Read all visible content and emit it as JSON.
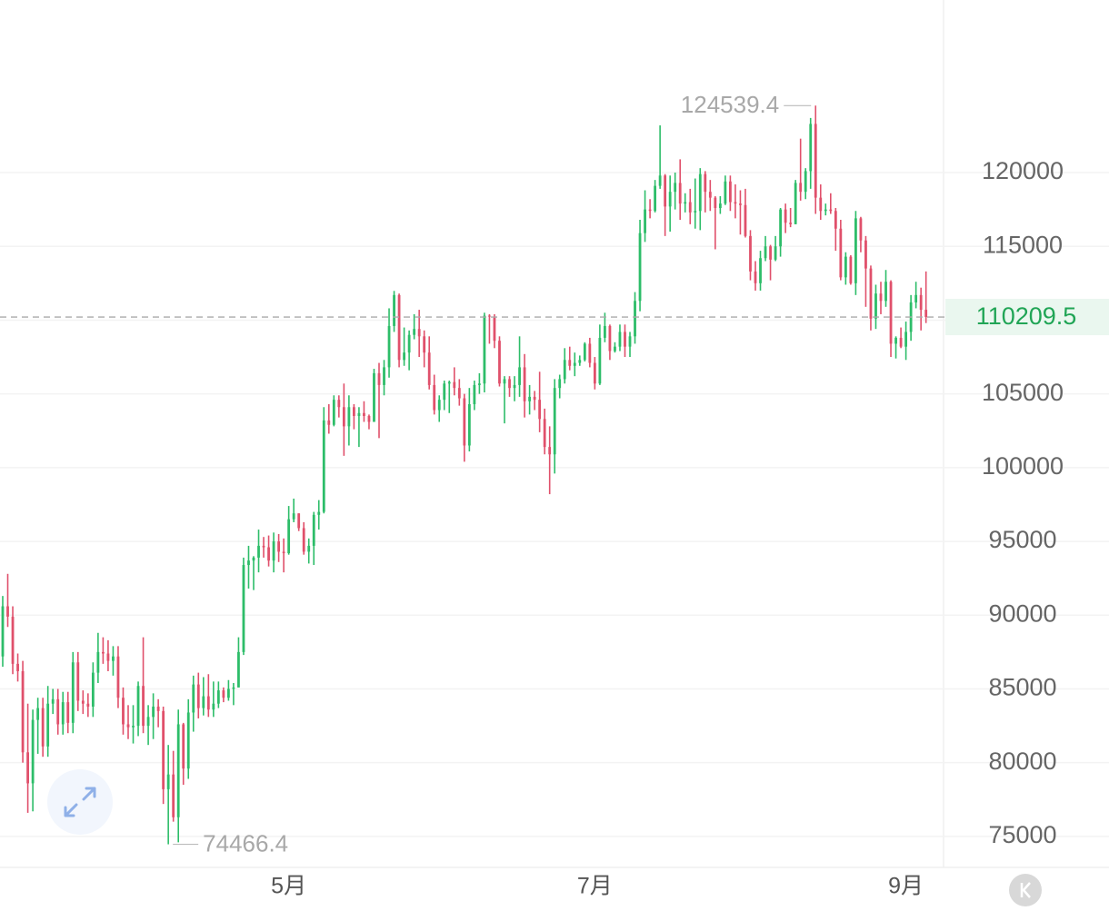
{
  "chart_data": {
    "type": "candlestick",
    "up_color": "#2dbd69",
    "down_color": "#e0506b",
    "grid": true,
    "ylim": [
      72900,
      131700
    ],
    "yticks": [
      75000,
      80000,
      85000,
      90000,
      95000,
      100000,
      105000,
      110000,
      115000,
      120000
    ],
    "categories": [
      null,
      null,
      null,
      null,
      null,
      null,
      null,
      null,
      null,
      null,
      null,
      null,
      null,
      null,
      null,
      null,
      null,
      null,
      null,
      null,
      null,
      null,
      null,
      null,
      null,
      null,
      null,
      null,
      null,
      null,
      null,
      null,
      null,
      null,
      null,
      null,
      null,
      null,
      null,
      null,
      null,
      null,
      null,
      null,
      null,
      null,
      null,
      null,
      null,
      null,
      null,
      null,
      null,
      null,
      null,
      null,
      null,
      "5月",
      null,
      null,
      null,
      null,
      null,
      null,
      null,
      null,
      null,
      null,
      null,
      null,
      null,
      null,
      null,
      null,
      null,
      null,
      null,
      null,
      null,
      null,
      null,
      null,
      null,
      null,
      null,
      null,
      null,
      null,
      null,
      null,
      null,
      null,
      null,
      null,
      null,
      null,
      null,
      null,
      null,
      null,
      null,
      null,
      null,
      null,
      null,
      null,
      null,
      null,
      null,
      null,
      null,
      null,
      null,
      null,
      null,
      null,
      null,
      null,
      "7月",
      null,
      null,
      null,
      null,
      null,
      null,
      null,
      null,
      null,
      null,
      null,
      null,
      null,
      null,
      null,
      null,
      null,
      null,
      null,
      null,
      null,
      null,
      null,
      null,
      null,
      null,
      null,
      null,
      null,
      null,
      null,
      null,
      null,
      null,
      null,
      null,
      null,
      null,
      null,
      null,
      null,
      null,
      null,
      null,
      null,
      null,
      null,
      null,
      null,
      null,
      null,
      null,
      null,
      null,
      null,
      null,
      null,
      null,
      null,
      null,
      null,
      "9月",
      null,
      null,
      null,
      null
    ],
    "ohlc": [
      [
        87200,
        91300,
        86500,
        90600
      ],
      [
        90600,
        92800,
        89200,
        89900
      ],
      [
        89900,
        90600,
        86000,
        86700
      ],
      [
        86700,
        87400,
        85500,
        86200
      ],
      [
        86200,
        86900,
        80000,
        80700
      ],
      [
        80700,
        84000,
        76600,
        78600
      ],
      [
        78600,
        83600,
        76700,
        82900
      ],
      [
        82900,
        84400,
        80600,
        83700
      ],
      [
        83700,
        84400,
        80400,
        81100
      ],
      [
        81100,
        85200,
        80400,
        84000
      ],
      [
        84000,
        85000,
        83300,
        84300
      ],
      [
        84300,
        85000,
        81900,
        82600
      ],
      [
        82600,
        84800,
        81900,
        84100
      ],
      [
        84100,
        84800,
        82000,
        82700
      ],
      [
        82700,
        87500,
        82000,
        86800
      ],
      [
        86800,
        87500,
        83500,
        84200
      ],
      [
        84200,
        84900,
        83300,
        84000
      ],
      [
        84000,
        84700,
        83100,
        83800
      ],
      [
        83800,
        86800,
        83100,
        86100
      ],
      [
        86100,
        88800,
        85400,
        87500
      ],
      [
        87500,
        88500,
        86700,
        87400
      ],
      [
        87400,
        88300,
        86200,
        86900
      ],
      [
        86900,
        87900,
        85900,
        87200
      ],
      [
        87200,
        87900,
        83700,
        84400
      ],
      [
        84400,
        85100,
        81900,
        82600
      ],
      [
        82600,
        83900,
        81600,
        82400
      ],
      [
        82400,
        83900,
        81300,
        82500
      ],
      [
        82500,
        85500,
        81800,
        85200
      ],
      [
        85200,
        88500,
        82000,
        82500
      ],
      [
        82500,
        83900,
        81200,
        83100
      ],
      [
        83100,
        84700,
        81600,
        83800
      ],
      [
        83800,
        84300,
        82400,
        83500
      ],
      [
        83500,
        83800,
        77200,
        78200
      ],
      [
        78200,
        81200,
        74466.4,
        79200
      ],
      [
        79200,
        80800,
        76000,
        76300
      ],
      [
        76300,
        83600,
        74600,
        82600
      ],
      [
        82600,
        82700,
        78500,
        79600
      ],
      [
        79600,
        84300,
        78900,
        83400
      ],
      [
        83400,
        85900,
        82100,
        85300
      ],
      [
        85300,
        86100,
        83000,
        83700
      ],
      [
        83700,
        85800,
        83200,
        84500
      ],
      [
        84500,
        86000,
        83100,
        83600
      ],
      [
        83600,
        85500,
        83100,
        84000
      ],
      [
        84000,
        85500,
        83700,
        84900
      ],
      [
        84900,
        85100,
        84100,
        84400
      ],
      [
        84400,
        85600,
        84200,
        85000
      ],
      [
        85000,
        85400,
        83900,
        85100
      ],
      [
        85100,
        88500,
        85100,
        87500
      ],
      [
        87500,
        93900,
        87300,
        93400
      ],
      [
        93400,
        94700,
        91800,
        93700
      ],
      [
        93700,
        94000,
        91700,
        93900
      ],
      [
        93900,
        95800,
        92900,
        94700
      ],
      [
        94700,
        95300,
        93900,
        94600
      ],
      [
        94600,
        95400,
        93300,
        93700
      ],
      [
        93700,
        95600,
        92900,
        95000
      ],
      [
        95000,
        95500,
        93600,
        94300
      ],
      [
        94300,
        95200,
        92900,
        94200
      ],
      [
        94200,
        97400,
        94100,
        96500
      ],
      [
        96500,
        97900,
        96300,
        96900
      ],
      [
        96900,
        96900,
        95700,
        95900
      ],
      [
        95900,
        96300,
        94100,
        94300
      ],
      [
        94300,
        95200,
        93500,
        94700
      ],
      [
        94700,
        97000,
        93400,
        96800
      ],
      [
        96800,
        97800,
        95800,
        97000
      ],
      [
        97000,
        104100,
        96900,
        103200
      ],
      [
        103200,
        104300,
        102300,
        102900
      ],
      [
        102900,
        104900,
        102800,
        104600
      ],
      [
        104600,
        104900,
        103400,
        104100
      ],
      [
        104100,
        105700,
        100800,
        102800
      ],
      [
        102800,
        104900,
        101500,
        104100
      ],
      [
        104100,
        104300,
        102600,
        103500
      ],
      [
        103500,
        104100,
        101400,
        103700
      ],
      [
        103700,
        104500,
        103100,
        103500
      ],
      [
        103500,
        103600,
        102600,
        103100
      ],
      [
        103100,
        106700,
        103100,
        106400
      ],
      [
        106400,
        107100,
        102000,
        105600
      ],
      [
        105600,
        107300,
        104900,
        106800
      ],
      [
        106800,
        110800,
        106100,
        109600
      ],
      [
        109600,
        111980,
        109200,
        111700
      ],
      [
        111700,
        111800,
        106800,
        107300
      ],
      [
        107300,
        109500,
        106900,
        107800
      ],
      [
        107800,
        109300,
        106600,
        109000
      ],
      [
        109000,
        110400,
        108700,
        109400
      ],
      [
        109400,
        110700,
        107500,
        108900
      ],
      [
        108900,
        109300,
        106800,
        107800
      ],
      [
        107800,
        108900,
        105300,
        105600
      ],
      [
        105600,
        106300,
        103600,
        103900
      ],
      [
        103900,
        104900,
        103100,
        104600
      ],
      [
        104600,
        105900,
        103900,
        105700
      ],
      [
        105700,
        105900,
        103700,
        105800
      ],
      [
        105800,
        106800,
        104900,
        105400
      ],
      [
        105400,
        106000,
        104200,
        104700
      ],
      [
        104700,
        105000,
        100400,
        101500
      ],
      [
        101500,
        105400,
        101100,
        104300
      ],
      [
        104300,
        105900,
        103900,
        105600
      ],
      [
        105600,
        106400,
        105000,
        105700
      ],
      [
        105700,
        110500,
        105100,
        110300
      ],
      [
        110300,
        110400,
        108400,
        110250
      ],
      [
        110250,
        110400,
        108100,
        108600
      ],
      [
        108600,
        108900,
        105500,
        105700
      ],
      [
        105700,
        106200,
        103000,
        106000
      ],
      [
        106000,
        106200,
        104800,
        105400
      ],
      [
        105400,
        106200,
        104500,
        105600
      ],
      [
        105600,
        108900,
        104800,
        106800
      ],
      [
        106800,
        107700,
        103400,
        104500
      ],
      [
        104500,
        105600,
        103600,
        104800
      ],
      [
        104800,
        105200,
        103900,
        104600
      ],
      [
        104600,
        106500,
        102400,
        103300
      ],
      [
        103300,
        104000,
        100900,
        101400
      ],
      [
        101400,
        102800,
        98200,
        100900
      ],
      [
        100900,
        106000,
        99600,
        105400
      ],
      [
        105400,
        106300,
        104700,
        106000
      ],
      [
        106000,
        108100,
        105700,
        107300
      ],
      [
        107300,
        108200,
        106600,
        106900
      ],
      [
        106900,
        107800,
        106200,
        107100
      ],
      [
        107100,
        107600,
        106900,
        107300
      ],
      [
        107300,
        108500,
        107200,
        108400
      ],
      [
        108400,
        108800,
        106800,
        107100
      ],
      [
        107100,
        107500,
        105300,
        105700
      ],
      [
        105700,
        109700,
        105600,
        108800
      ],
      [
        108800,
        110500,
        108500,
        109600
      ],
      [
        109600,
        109700,
        107300,
        107900
      ],
      [
        107900,
        108500,
        107800,
        108200
      ],
      [
        108200,
        109700,
        107900,
        109200
      ],
      [
        109200,
        109700,
        107500,
        108200
      ],
      [
        108200,
        109200,
        107500,
        108900
      ],
      [
        108900,
        111900,
        108400,
        111300
      ],
      [
        111300,
        116800,
        110600,
        115900
      ],
      [
        115900,
        118800,
        115300,
        117500
      ],
      [
        117500,
        118200,
        116900,
        117400
      ],
      [
        117400,
        119500,
        117300,
        119100
      ],
      [
        119100,
        123200,
        118900,
        119800
      ],
      [
        119800,
        119900,
        115700,
        117700
      ],
      [
        117700,
        119800,
        116000,
        118700
      ],
      [
        118700,
        120000,
        117500,
        119300
      ],
      [
        119300,
        120900,
        116800,
        117900
      ],
      [
        117900,
        118600,
        117300,
        118000
      ],
      [
        118000,
        118900,
        116500,
        117300
      ],
      [
        117300,
        119600,
        116200,
        117400
      ],
      [
        117400,
        120300,
        116100,
        119900
      ],
      [
        119900,
        120100,
        117300,
        118700
      ],
      [
        118700,
        119500,
        117400,
        118300
      ],
      [
        118300,
        118400,
        114800,
        117600
      ],
      [
        117600,
        118400,
        117200,
        117900
      ],
      [
        117900,
        119800,
        117800,
        119400
      ],
      [
        119400,
        119800,
        117400,
        118000
      ],
      [
        118000,
        119200,
        116900,
        117900
      ],
      [
        117900,
        118800,
        115800,
        117800
      ],
      [
        117800,
        118900,
        115600,
        115700
      ],
      [
        115700,
        116100,
        112700,
        113300
      ],
      [
        113300,
        114000,
        112000,
        112500
      ],
      [
        112500,
        114700,
        112000,
        114200
      ],
      [
        114200,
        115700,
        114000,
        115000
      ],
      [
        115000,
        115100,
        112700,
        114100
      ],
      [
        114100,
        115700,
        114000,
        115000
      ],
      [
        115000,
        117600,
        114300,
        117500
      ],
      [
        117500,
        117900,
        115900,
        116600
      ],
      [
        116600,
        117600,
        116300,
        116500
      ],
      [
        116500,
        119500,
        116500,
        119300
      ],
      [
        119300,
        122300,
        118100,
        118700
      ],
      [
        118700,
        120300,
        118200,
        120100
      ],
      [
        120100,
        123700,
        118900,
        123300
      ],
      [
        123300,
        124539.4,
        117200,
        118300
      ],
      [
        118300,
        119200,
        116800,
        117400
      ],
      [
        117400,
        117900,
        117100,
        117500
      ],
      [
        117500,
        118600,
        117200,
        117400
      ],
      [
        117400,
        117600,
        114700,
        116200
      ],
      [
        116200,
        116800,
        112700,
        112900
      ],
      [
        112900,
        114600,
        112400,
        114300
      ],
      [
        114300,
        114400,
        112400,
        112500
      ],
      [
        112500,
        117400,
        111700,
        116900
      ],
      [
        116900,
        117000,
        114600,
        115400
      ],
      [
        115400,
        115700,
        110900,
        113500
      ],
      [
        113500,
        113700,
        109300,
        110100
      ],
      [
        110100,
        112400,
        109400,
        111800
      ],
      [
        111800,
        112600,
        110400,
        111300
      ],
      [
        111300,
        113400,
        110900,
        112600
      ],
      [
        112600,
        112700,
        107500,
        108400
      ],
      [
        108400,
        108900,
        107400,
        108800
      ],
      [
        108800,
        109500,
        108100,
        108200
      ],
      [
        108200,
        109900,
        107300,
        109200
      ],
      [
        109200,
        111700,
        108600,
        111200
      ],
      [
        111200,
        112600,
        110800,
        111700
      ],
      [
        111700,
        112200,
        109300,
        110700
      ],
      [
        110700,
        113300,
        109800,
        110209.5
      ]
    ]
  }
}
